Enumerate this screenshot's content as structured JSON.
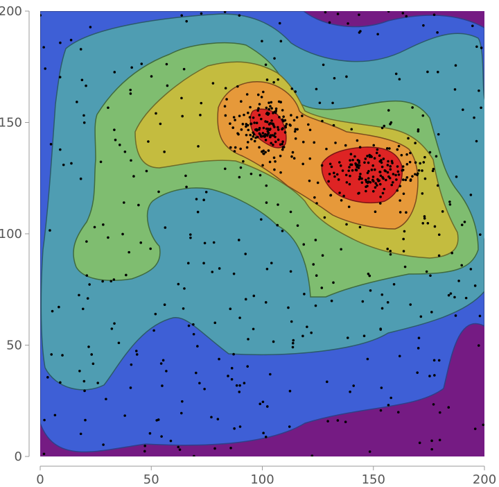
{
  "chart_data": {
    "type": "contour",
    "title": "",
    "xlabel": "",
    "ylabel": "",
    "xlim": [
      0,
      200
    ],
    "ylim": [
      0,
      200
    ],
    "x_ticks": [
      0,
      50,
      100,
      150,
      200
    ],
    "y_ticks": [
      0,
      50,
      100,
      150,
      200
    ],
    "grid": false,
    "legend": "none",
    "contour_levels_colors": [
      "#751B83",
      "#3E5FD6",
      "#4F9DB2",
      "#7FBD70",
      "#C4BC3F",
      "#E6993A",
      "#DE2424"
    ],
    "density_peaks": [
      {
        "x": 102,
        "y": 147
      },
      {
        "x": 150,
        "y": 128
      }
    ],
    "points_count": 700,
    "point_color": "#000000"
  }
}
